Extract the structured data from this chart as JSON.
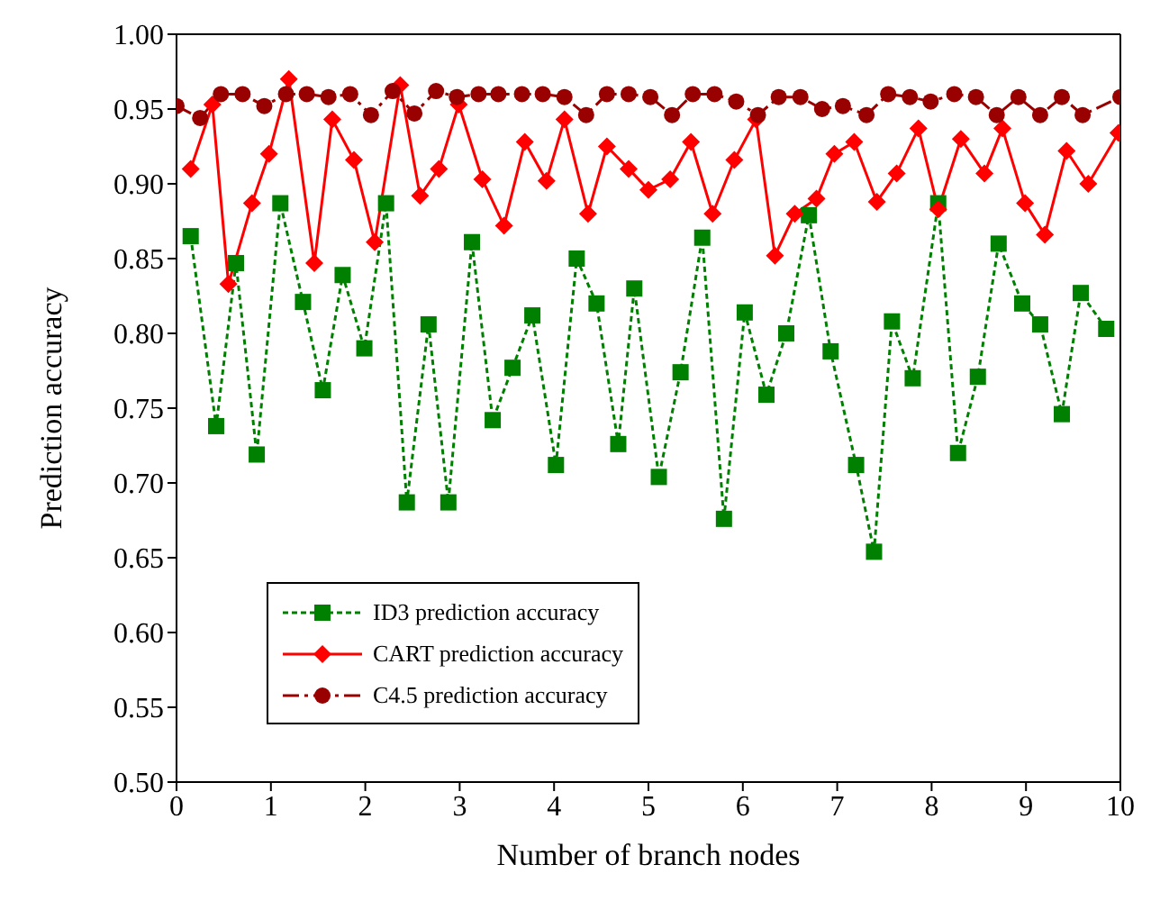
{
  "chart_data": {
    "type": "line",
    "xlabel": "Number of branch nodes",
    "ylabel": "Prediction accuracy",
    "xlim": [
      0,
      10
    ],
    "xticks": [
      0,
      1,
      2,
      3,
      4,
      5,
      6,
      7,
      8,
      9,
      10
    ],
    "ylim": [
      0.5,
      1.0
    ],
    "yticks": [
      {
        "value": 0.5,
        "label": "0.50"
      },
      {
        "value": 0.55,
        "label": "0.55"
      },
      {
        "value": 0.6,
        "label": "0.60"
      },
      {
        "value": 0.65,
        "label": "0.65"
      },
      {
        "value": 0.7,
        "label": "0.70"
      },
      {
        "value": 0.75,
        "label": "0.75"
      },
      {
        "value": 0.8,
        "label": "0.80"
      },
      {
        "value": 0.85,
        "label": "0.85"
      },
      {
        "value": 0.9,
        "label": "0.90"
      },
      {
        "value": 0.95,
        "label": "0.95"
      },
      {
        "value": 1.0,
        "label": "1.00"
      }
    ],
    "legend": "bottom left",
    "series": [
      {
        "name": "ID3 prediction accuracy",
        "color": "#008000",
        "marker": "square",
        "line_style": "dotted",
        "x": [
          0.15,
          0.42,
          0.63,
          0.85,
          1.1,
          1.34,
          1.55,
          1.76,
          1.99,
          2.22,
          2.44,
          2.67,
          2.88,
          3.13,
          3.35,
          3.56,
          3.77,
          4.02,
          4.24,
          4.45,
          4.68,
          4.85,
          5.11,
          5.34,
          5.57,
          5.8,
          6.02,
          6.25,
          6.46,
          6.7,
          6.93,
          7.2,
          7.39,
          7.58,
          7.8,
          8.07,
          8.28,
          8.49,
          8.71,
          8.96,
          9.15,
          9.38,
          9.58,
          9.85
        ],
        "values": [
          0.865,
          0.738,
          0.847,
          0.719,
          0.887,
          0.821,
          0.762,
          0.839,
          0.79,
          0.887,
          0.687,
          0.806,
          0.687,
          0.861,
          0.742,
          0.777,
          0.812,
          0.712,
          0.85,
          0.82,
          0.726,
          0.83,
          0.704,
          0.774,
          0.864,
          0.676,
          0.814,
          0.759,
          0.8,
          0.879,
          0.788,
          0.712,
          0.654,
          0.808,
          0.77,
          0.887,
          0.72,
          0.771,
          0.86,
          0.82,
          0.806,
          0.746,
          0.827,
          0.803
        ]
      },
      {
        "name": "CART prediction accuracy",
        "color": "#ff0000",
        "marker": "diamond",
        "line_style": "solid",
        "x": [
          0.15,
          0.38,
          0.55,
          0.8,
          0.98,
          1.19,
          1.46,
          1.65,
          1.88,
          2.1,
          2.37,
          2.58,
          2.78,
          2.99,
          3.24,
          3.47,
          3.69,
          3.92,
          4.11,
          4.36,
          4.56,
          4.79,
          5.0,
          5.23,
          5.45,
          5.68,
          5.91,
          6.14,
          6.34,
          6.55,
          6.78,
          6.97,
          7.18,
          7.42,
          7.63,
          7.86,
          8.07,
          8.31,
          8.56,
          8.75,
          8.99,
          9.2,
          9.43,
          9.66,
          9.98
        ],
        "values": [
          0.91,
          0.953,
          0.833,
          0.887,
          0.92,
          0.97,
          0.847,
          0.943,
          0.916,
          0.861,
          0.966,
          0.892,
          0.91,
          0.953,
          0.903,
          0.872,
          0.928,
          0.902,
          0.943,
          0.88,
          0.925,
          0.91,
          0.896,
          0.903,
          0.928,
          0.88,
          0.916,
          0.943,
          0.852,
          0.88,
          0.89,
          0.92,
          0.928,
          0.888,
          0.907,
          0.937,
          0.883,
          0.93,
          0.907,
          0.937,
          0.887,
          0.866,
          0.922,
          0.9,
          0.934
        ]
      },
      {
        "name": "C4.5 prediction accuracy",
        "color": "#990000",
        "marker": "circle",
        "line_style": "dashed",
        "x": [
          0,
          0.25,
          0.47,
          0.7,
          0.93,
          1.16,
          1.38,
          1.61,
          1.84,
          2.06,
          2.29,
          2.52,
          2.75,
          2.97,
          3.2,
          3.41,
          3.66,
          3.88,
          4.11,
          4.34,
          4.56,
          4.79,
          5.02,
          5.25,
          5.47,
          5.7,
          5.93,
          6.16,
          6.38,
          6.61,
          6.84,
          7.06,
          7.31,
          7.54,
          7.77,
          7.99,
          8.24,
          8.47,
          8.69,
          8.92,
          9.15,
          9.38,
          9.6,
          10.0
        ],
        "values": [
          0.952,
          0.944,
          0.96,
          0.96,
          0.952,
          0.96,
          0.96,
          0.958,
          0.96,
          0.946,
          0.962,
          0.947,
          0.962,
          0.958,
          0.96,
          0.96,
          0.96,
          0.96,
          0.958,
          0.946,
          0.96,
          0.96,
          0.958,
          0.946,
          0.96,
          0.96,
          0.955,
          0.946,
          0.958,
          0.958,
          0.95,
          0.952,
          0.946,
          0.96,
          0.958,
          0.955,
          0.96,
          0.958,
          0.946,
          0.958,
          0.946,
          0.958,
          0.946,
          0.958
        ]
      }
    ]
  }
}
